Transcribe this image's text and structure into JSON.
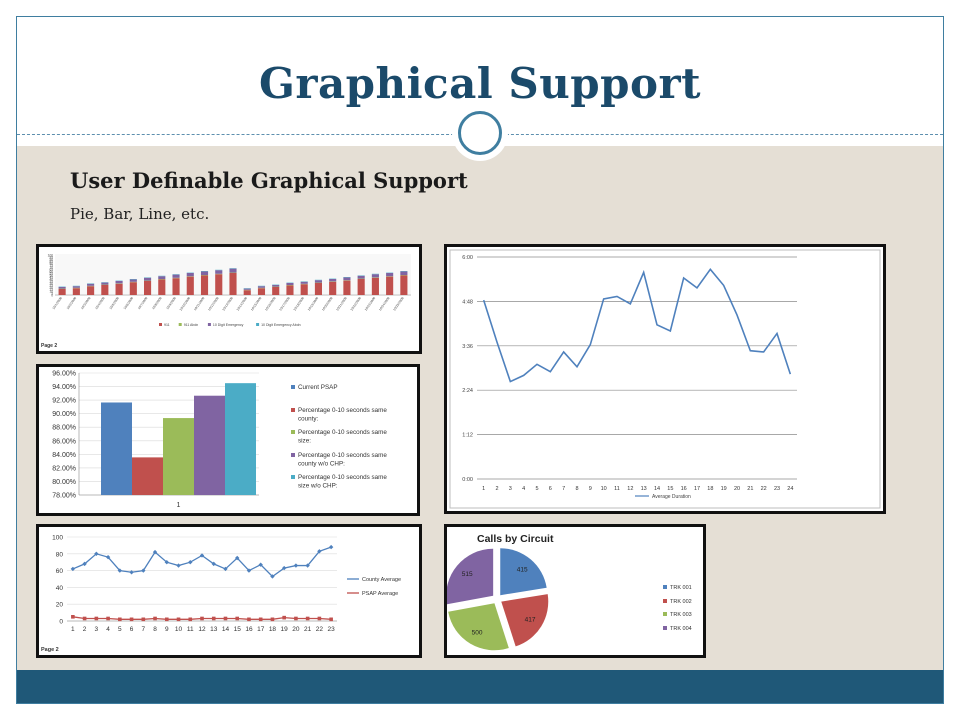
{
  "slide": {
    "title": "Graphical Support",
    "heading": "User Definable Graphical Support",
    "subtext": "Pie, Bar, Line, etc."
  },
  "colors": {
    "title": "#1b4a6a",
    "accent": "#3f7ea0",
    "footer": "#1f5878",
    "content_bg": "#e5dfd5"
  },
  "chart_data": [
    {
      "type": "bar",
      "stacked": true,
      "ylim": [
        0,
        100
      ],
      "y_ticks": [
        0,
        5,
        10,
        15,
        20,
        25,
        30,
        35,
        40,
        45,
        50,
        55,
        60,
        65,
        70,
        75,
        80,
        85,
        90,
        95,
        100
      ],
      "categories": [
        "10/1/2008",
        "10/2/2008",
        "10/3/2008",
        "10/4/2008",
        "10/5/2008",
        "10/6/2008",
        "10/7/2008",
        "10/8/2008",
        "10/9/2008",
        "10/10/2008",
        "10/11/2008",
        "10/12/2008",
        "10/13/2008",
        "10/14/2008",
        "10/15/2008",
        "10/16/2008",
        "10/17/2008",
        "10/18/2008",
        "10/19/2008",
        "10/20/2008",
        "10/21/2008",
        "10/22/2008",
        "10/23/2008",
        "10/24/2008",
        "10/25/2008"
      ],
      "series": [
        {
          "name": "911",
          "color": "#c0504d",
          "values": [
            15,
            17,
            22,
            25,
            28,
            32,
            35,
            39,
            42,
            46,
            49,
            52,
            55,
            12,
            17,
            20,
            24,
            27,
            30,
            33,
            36,
            40,
            43,
            46,
            49
          ]
        },
        {
          "name": "911 Abdn",
          "color": "#9bbb59",
          "values": [
            1,
            1,
            1,
            1,
            1,
            1,
            1,
            1,
            1,
            1,
            1,
            1,
            1,
            1,
            1,
            1,
            1,
            1,
            1,
            1,
            1,
            1,
            1,
            1,
            1
          ]
        },
        {
          "name": "10 Digit Emergency",
          "color": "#8064a2",
          "values": [
            4,
            4,
            5,
            5,
            6,
            6,
            7,
            7,
            8,
            8,
            9,
            9,
            10,
            3,
            4,
            4,
            5,
            5,
            6,
            6,
            7,
            7,
            8,
            8,
            9
          ]
        },
        {
          "name": "10 Digit Emergency Abdn",
          "color": "#4bacc6",
          "values": [
            1,
            1,
            1,
            1,
            1,
            1,
            1,
            1,
            1,
            1,
            1,
            1,
            1,
            1,
            1,
            1,
            1,
            1,
            1,
            1,
            1,
            1,
            1,
            1,
            1
          ]
        }
      ],
      "footer_text": "Page 2"
    },
    {
      "type": "line",
      "x": [
        1,
        2,
        3,
        4,
        5,
        6,
        7,
        8,
        9,
        10,
        11,
        12,
        13,
        14,
        15,
        16,
        17,
        18,
        19,
        20,
        21,
        22,
        23,
        24
      ],
      "y_tick_labels": [
        "0:00",
        "1:12",
        "2:24",
        "3:36",
        "4:48",
        "6:00"
      ],
      "y_tick_values": [
        0,
        72,
        144,
        216,
        288,
        360
      ],
      "ylim": [
        0,
        360
      ],
      "series": [
        {
          "name": "Average Duration",
          "color": "#4f81bd",
          "values": [
            290,
            222,
            158,
            168,
            186,
            174,
            206,
            182,
            218,
            292,
            296,
            284,
            335,
            250,
            240,
            326,
            310,
            340,
            314,
            266,
            208,
            206,
            236,
            170
          ]
        }
      ]
    },
    {
      "type": "bar",
      "categories": [
        "1"
      ],
      "ylim": [
        0.78,
        0.96
      ],
      "y_tick_labels": [
        "78.00%",
        "80.00%",
        "82.00%",
        "84.00%",
        "86.00%",
        "88.00%",
        "90.00%",
        "92.00%",
        "94.00%",
        "96.00%"
      ],
      "series": [
        {
          "name": "Current PSAP",
          "color": "#4f81bd",
          "values": [
            0.9165
          ]
        },
        {
          "name": "Percentage 0-10 seconds same county:",
          "color": "#c0504d",
          "values": [
            0.8355
          ]
        },
        {
          "name": "Percentage 0-10 seconds same size:",
          "color": "#9bbb59",
          "values": [
            0.8935
          ]
        },
        {
          "name": "Percentage 0-10 seconds same county w/o CHP:",
          "color": "#8064a2",
          "values": [
            0.9265
          ]
        },
        {
          "name": "Percentage 0-10 seconds same size w/o CHP:",
          "color": "#4bacc6",
          "values": [
            0.945
          ]
        }
      ]
    },
    {
      "type": "line",
      "x": [
        1,
        2,
        3,
        4,
        5,
        6,
        7,
        8,
        9,
        10,
        11,
        12,
        13,
        14,
        15,
        16,
        17,
        18,
        19,
        20,
        21,
        22,
        23
      ],
      "ylim": [
        0,
        100
      ],
      "y_ticks": [
        0,
        20,
        40,
        60,
        80,
        100
      ],
      "series": [
        {
          "name": "County Average",
          "color": "#4f81bd",
          "values": [
            62,
            68,
            80,
            76,
            60,
            58,
            60,
            82,
            70,
            66,
            70,
            78,
            68,
            62,
            75,
            60,
            67,
            53,
            63,
            66,
            66,
            83,
            88
          ]
        },
        {
          "name": "PSAP Average",
          "color": "#c0504d",
          "values": [
            5,
            3,
            3,
            3,
            2,
            2,
            2,
            3,
            2,
            2,
            2,
            3,
            3,
            3,
            3,
            2,
            2,
            2,
            4,
            3,
            3,
            3,
            2
          ]
        }
      ],
      "footer_text": "Page 2"
    },
    {
      "type": "pie",
      "title": "Calls by Circuit",
      "labels": [
        "TRK 001",
        "TRK 002",
        "TRK 003",
        "TRK 004"
      ],
      "values": [
        415,
        417,
        500,
        515
      ],
      "colors": [
        "#4f81bd",
        "#c0504d",
        "#9bbb59",
        "#8064a2"
      ]
    }
  ]
}
